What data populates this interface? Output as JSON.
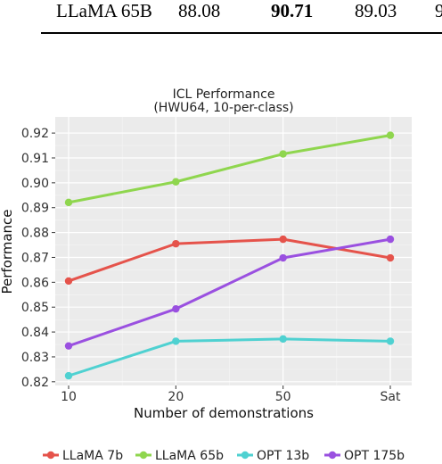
{
  "table": {
    "row": [
      "LLaMA 65B",
      "88.08",
      "90.71",
      "89.03",
      "9"
    ]
  },
  "chart_data": {
    "type": "line",
    "title": "ICL Performance",
    "subtitle": "(HWU64, 10-per-class)",
    "xlabel": "Number of demonstrations",
    "ylabel": "Performance",
    "categories": [
      "10",
      "20",
      "50",
      "Sat"
    ],
    "ylim": [
      0.8185,
      0.9265
    ],
    "yticks": [
      0.82,
      0.83,
      0.84,
      0.85,
      0.86,
      0.87,
      0.88,
      0.89,
      0.9,
      0.91,
      0.92
    ],
    "yticks_labels": [
      "0.82",
      "0.83",
      "0.84",
      "0.85",
      "0.86",
      "0.87",
      "0.88",
      "0.89",
      "0.90",
      "0.91",
      "0.92"
    ],
    "grid": true,
    "legend_position": "bottom",
    "series": [
      {
        "name": "LLaMA 7b",
        "color": "#e5534b",
        "values": [
          0.8605,
          0.8755,
          0.8773,
          0.8698
        ]
      },
      {
        "name": "LLaMA 65b",
        "color": "#8fd64e",
        "values": [
          0.8921,
          0.9004,
          0.9116,
          0.9191
        ]
      },
      {
        "name": "OPT 13b",
        "color": "#4fd1d1",
        "values": [
          0.8224,
          0.8363,
          0.8372,
          0.8363
        ]
      },
      {
        "name": "OPT 175b",
        "color": "#9a50e0",
        "values": [
          0.8344,
          0.8493,
          0.8698,
          0.8773
        ]
      }
    ]
  }
}
